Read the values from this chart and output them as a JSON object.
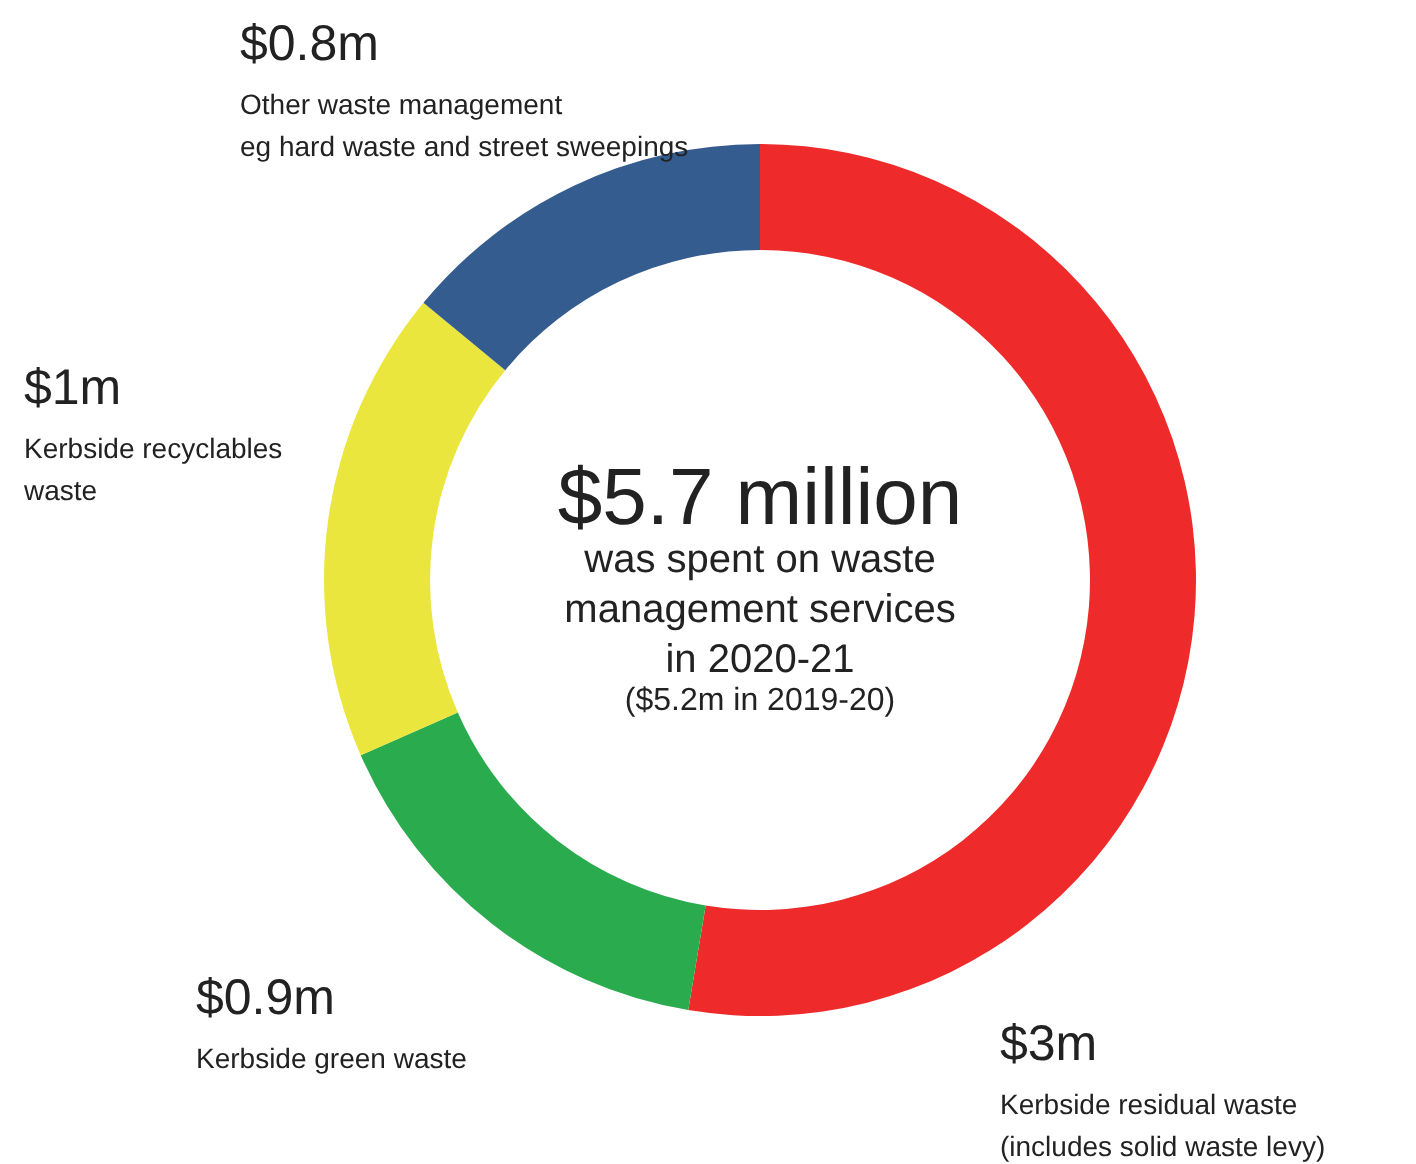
{
  "chart_data": {
    "type": "donut",
    "title": "$5.7 million",
    "subtitle": "was spent on waste\nmanagement services\nin 2020-21",
    "annotations": [
      "($5.2m in 2019-20)"
    ],
    "categories": [
      "Kerbside residual waste\n(includes solid waste levy)",
      "Kerbside green waste",
      "Kerbside recyclables\nwaste",
      "Other waste management\neg hard waste and street sweepings"
    ],
    "values": [
      3,
      0.9,
      1,
      0.8
    ],
    "value_labels": [
      "$3m",
      "$0.9m",
      "$1m",
      "$0.8m"
    ],
    "colors": [
      "#ee2a2a",
      "#2aac4e",
      "#eae63e",
      "#355c8f"
    ]
  }
}
